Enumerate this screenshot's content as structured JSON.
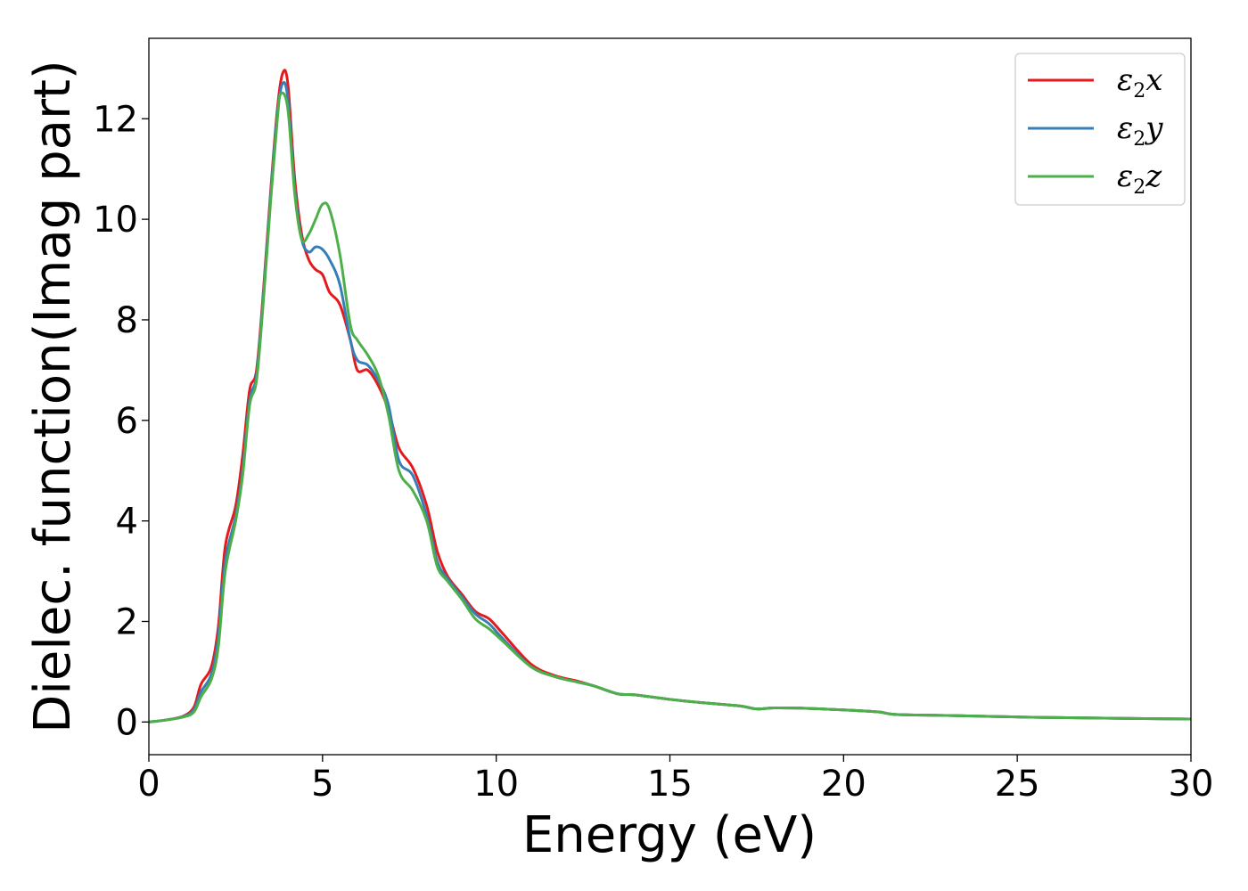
{
  "chart_data": {
    "type": "line",
    "title": "",
    "xlabel": "Energy (eV)",
    "ylabel": "Dielec. function(Imag part)",
    "xlim": [
      0,
      30
    ],
    "ylim": [
      -0.65,
      13.6
    ],
    "x_ticks": [
      "0",
      "5",
      "10",
      "15",
      "20",
      "25",
      "30"
    ],
    "y_ticks": [
      "0",
      "2",
      "4",
      "6",
      "8",
      "10",
      "12"
    ],
    "grid": false,
    "legend_position": "top-right",
    "series": [
      {
        "name": "ε2x",
        "legend_base": "ε",
        "legend_sub": "2",
        "legend_tail": "x",
        "color": "#e41a1c",
        "points": [
          [
            0,
            0
          ],
          [
            0.5,
            0.04
          ],
          [
            1,
            0.12
          ],
          [
            1.3,
            0.3
          ],
          [
            1.5,
            0.75
          ],
          [
            1.8,
            1.1
          ],
          [
            2,
            1.9
          ],
          [
            2.2,
            3.5
          ],
          [
            2.5,
            4.3
          ],
          [
            2.7,
            5.3
          ],
          [
            2.9,
            6.6
          ],
          [
            3.1,
            7.0
          ],
          [
            3.3,
            8.6
          ],
          [
            3.5,
            10.5
          ],
          [
            3.7,
            12.2
          ],
          [
            3.85,
            12.9
          ],
          [
            4.0,
            12.7
          ],
          [
            4.2,
            10.8
          ],
          [
            4.4,
            9.7
          ],
          [
            4.6,
            9.2
          ],
          [
            4.8,
            9.0
          ],
          [
            5.0,
            8.9
          ],
          [
            5.2,
            8.55
          ],
          [
            5.5,
            8.3
          ],
          [
            5.8,
            7.6
          ],
          [
            6.0,
            7.0
          ],
          [
            6.3,
            7.0
          ],
          [
            6.6,
            6.7
          ],
          [
            6.9,
            6.2
          ],
          [
            7.2,
            5.45
          ],
          [
            7.6,
            5.05
          ],
          [
            8.0,
            4.3
          ],
          [
            8.3,
            3.4
          ],
          [
            8.6,
            2.9
          ],
          [
            9.0,
            2.55
          ],
          [
            9.4,
            2.2
          ],
          [
            9.8,
            2.05
          ],
          [
            10.2,
            1.75
          ],
          [
            11.0,
            1.15
          ],
          [
            11.7,
            0.92
          ],
          [
            12.3,
            0.82
          ],
          [
            12.8,
            0.72
          ],
          [
            13.5,
            0.56
          ],
          [
            14.0,
            0.54
          ],
          [
            15.0,
            0.45
          ],
          [
            16.0,
            0.38
          ],
          [
            17.0,
            0.32
          ],
          [
            17.5,
            0.26
          ],
          [
            18.0,
            0.28
          ],
          [
            19.0,
            0.27
          ],
          [
            20.0,
            0.24
          ],
          [
            21.0,
            0.2
          ],
          [
            21.5,
            0.15
          ],
          [
            23.0,
            0.13
          ],
          [
            25.0,
            0.1
          ],
          [
            27.0,
            0.08
          ],
          [
            30.0,
            0.06
          ]
        ]
      },
      {
        "name": "ε2y",
        "legend_base": "ε",
        "legend_sub": "2",
        "legend_tail": "y",
        "color": "#377eb8",
        "points": [
          [
            0,
            0
          ],
          [
            0.5,
            0.04
          ],
          [
            1,
            0.11
          ],
          [
            1.3,
            0.25
          ],
          [
            1.5,
            0.6
          ],
          [
            1.8,
            0.95
          ],
          [
            2,
            1.7
          ],
          [
            2.2,
            3.2
          ],
          [
            2.5,
            4.1
          ],
          [
            2.7,
            5.0
          ],
          [
            2.9,
            6.4
          ],
          [
            3.1,
            6.9
          ],
          [
            3.3,
            8.5
          ],
          [
            3.5,
            10.4
          ],
          [
            3.7,
            12.1
          ],
          [
            3.85,
            12.7
          ],
          [
            4.0,
            12.4
          ],
          [
            4.2,
            10.6
          ],
          [
            4.4,
            9.6
          ],
          [
            4.6,
            9.35
          ],
          [
            4.8,
            9.45
          ],
          [
            5.0,
            9.4
          ],
          [
            5.2,
            9.2
          ],
          [
            5.5,
            8.7
          ],
          [
            5.8,
            7.6
          ],
          [
            6.0,
            7.2
          ],
          [
            6.3,
            7.1
          ],
          [
            6.6,
            6.8
          ],
          [
            6.9,
            6.3
          ],
          [
            7.2,
            5.2
          ],
          [
            7.6,
            4.9
          ],
          [
            8.0,
            4.1
          ],
          [
            8.3,
            3.2
          ],
          [
            8.6,
            2.85
          ],
          [
            9.0,
            2.5
          ],
          [
            9.4,
            2.15
          ],
          [
            9.8,
            1.95
          ],
          [
            10.2,
            1.65
          ],
          [
            11.0,
            1.1
          ],
          [
            11.7,
            0.9
          ],
          [
            12.3,
            0.8
          ],
          [
            12.8,
            0.72
          ],
          [
            13.5,
            0.56
          ],
          [
            14.0,
            0.54
          ],
          [
            15.0,
            0.45
          ],
          [
            16.0,
            0.38
          ],
          [
            17.0,
            0.32
          ],
          [
            17.5,
            0.26
          ],
          [
            18.0,
            0.28
          ],
          [
            19.0,
            0.27
          ],
          [
            20.0,
            0.24
          ],
          [
            21.0,
            0.2
          ],
          [
            21.5,
            0.15
          ],
          [
            23.0,
            0.13
          ],
          [
            25.0,
            0.1
          ],
          [
            27.0,
            0.08
          ],
          [
            30.0,
            0.06
          ]
        ]
      },
      {
        "name": "ε2z",
        "legend_base": "ε",
        "legend_sub": "2",
        "legend_tail": "z",
        "color": "#4daf4a",
        "points": [
          [
            0,
            0
          ],
          [
            0.5,
            0.04
          ],
          [
            1,
            0.1
          ],
          [
            1.3,
            0.2
          ],
          [
            1.5,
            0.5
          ],
          [
            1.8,
            0.85
          ],
          [
            2,
            1.5
          ],
          [
            2.2,
            3.0
          ],
          [
            2.5,
            4.0
          ],
          [
            2.7,
            4.9
          ],
          [
            2.9,
            6.3
          ],
          [
            3.1,
            6.8
          ],
          [
            3.3,
            8.4
          ],
          [
            3.5,
            10.3
          ],
          [
            3.7,
            12.0
          ],
          [
            3.8,
            12.5
          ],
          [
            4.0,
            12.2
          ],
          [
            4.2,
            10.5
          ],
          [
            4.4,
            9.6
          ],
          [
            4.6,
            9.7
          ],
          [
            4.8,
            10.0
          ],
          [
            5.0,
            10.3
          ],
          [
            5.2,
            10.2
          ],
          [
            5.5,
            9.3
          ],
          [
            5.8,
            7.9
          ],
          [
            6.0,
            7.6
          ],
          [
            6.3,
            7.3
          ],
          [
            6.6,
            6.9
          ],
          [
            6.9,
            6.1
          ],
          [
            7.2,
            5.0
          ],
          [
            7.6,
            4.6
          ],
          [
            8.0,
            4.0
          ],
          [
            8.3,
            3.1
          ],
          [
            8.6,
            2.8
          ],
          [
            9.0,
            2.45
          ],
          [
            9.4,
            2.05
          ],
          [
            9.8,
            1.85
          ],
          [
            10.2,
            1.6
          ],
          [
            11.0,
            1.1
          ],
          [
            11.7,
            0.9
          ],
          [
            12.3,
            0.8
          ],
          [
            12.8,
            0.72
          ],
          [
            13.5,
            0.56
          ],
          [
            14.0,
            0.54
          ],
          [
            15.0,
            0.45
          ],
          [
            16.0,
            0.38
          ],
          [
            17.0,
            0.32
          ],
          [
            17.5,
            0.26
          ],
          [
            18.0,
            0.28
          ],
          [
            19.0,
            0.27
          ],
          [
            20.0,
            0.24
          ],
          [
            21.0,
            0.2
          ],
          [
            21.5,
            0.15
          ],
          [
            23.0,
            0.13
          ],
          [
            25.0,
            0.1
          ],
          [
            27.0,
            0.08
          ],
          [
            30.0,
            0.06
          ]
        ]
      }
    ]
  }
}
